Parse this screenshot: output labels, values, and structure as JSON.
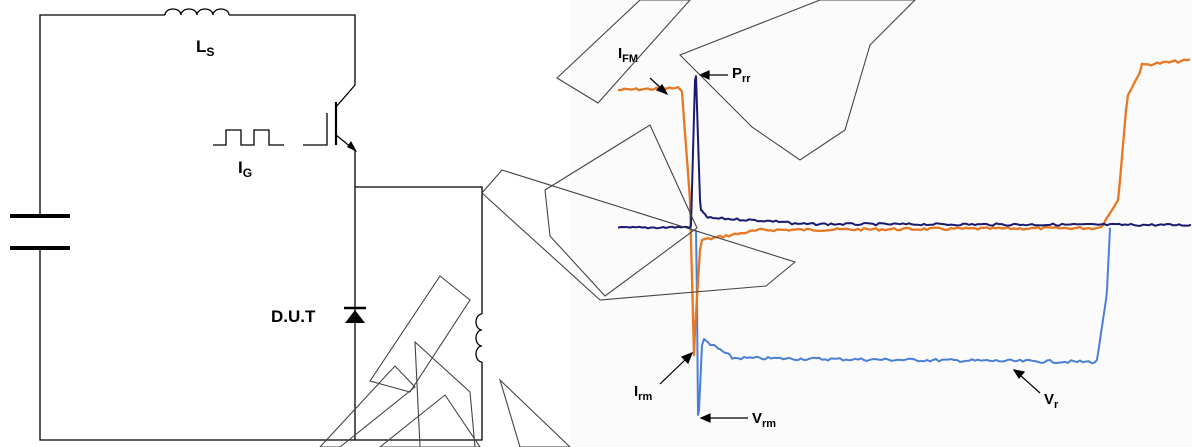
{
  "circuit": {
    "ls": {
      "main": "L",
      "sub": "S"
    },
    "ig": {
      "main": "I",
      "sub": "G"
    },
    "dut": "D.U.T"
  },
  "waveform": {
    "ifm": {
      "main": "I",
      "sub": "FM"
    },
    "prr": {
      "main": "P",
      "sub": "rr"
    },
    "irm": {
      "main": "I",
      "sub": "rm"
    },
    "vrm": {
      "main": "V",
      "sub": "rm"
    },
    "vr": {
      "main": "V",
      "sub": "r"
    }
  },
  "colors": {
    "current": "#E87722",
    "power": "#1A1A6E",
    "voltage": "#4A7FD8",
    "wire": "#000000",
    "watermark": "#444444"
  }
}
